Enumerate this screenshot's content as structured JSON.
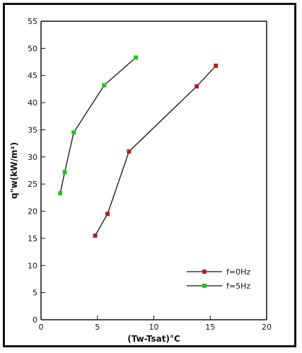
{
  "chart_data": {
    "type": "line",
    "xlabel": "(Tw-Tsat)°C",
    "ylabel": "q\"w(kW/m²)",
    "xlim": [
      0,
      20
    ],
    "ylim": [
      0,
      55
    ],
    "xticks": [
      0,
      5,
      10,
      15,
      20
    ],
    "yticks": [
      0,
      5,
      10,
      15,
      20,
      25,
      30,
      35,
      40,
      45,
      50,
      55
    ],
    "grid": false,
    "legend_position": "bottom-right",
    "reference_line": {
      "y": 55
    },
    "series": [
      {
        "name": "f=0Hz",
        "color": "#b22222",
        "x": [
          4.8,
          5.9,
          7.8,
          13.8,
          15.5
        ],
        "y": [
          15.5,
          19.5,
          31,
          43,
          46.8
        ]
      },
      {
        "name": "f=5Hz",
        "color": "#22c322",
        "x": [
          1.7,
          2.1,
          2.9,
          5.6,
          8.4
        ],
        "y": [
          23.3,
          27.2,
          34.5,
          43.2,
          48.3
        ]
      }
    ]
  }
}
